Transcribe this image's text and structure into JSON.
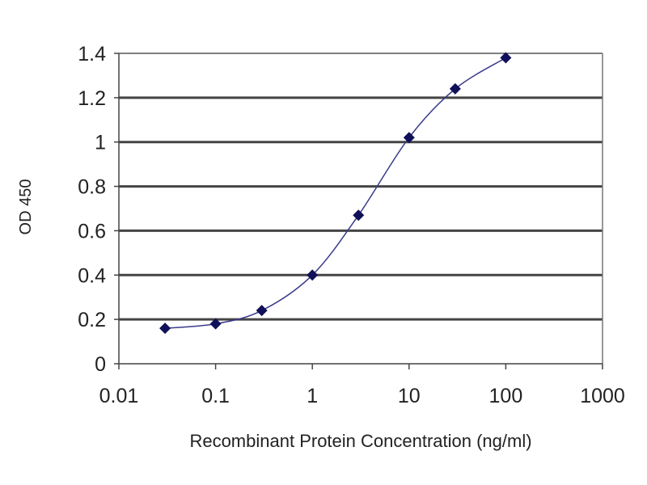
{
  "chart_data": {
    "type": "line",
    "title": "",
    "xlabel": "Recombinant Protein Concentration (ng/ml)",
    "ylabel": "OD 450",
    "x_scale": "log",
    "xlim": [
      0.01,
      1000
    ],
    "ylim": [
      0,
      1.4
    ],
    "x_ticks": [
      "0.01",
      "0.1",
      "1",
      "10",
      "100",
      "1000"
    ],
    "y_ticks": [
      "0",
      "0.2",
      "0.4",
      "0.6",
      "0.8",
      "1",
      "1.2",
      "1.4"
    ],
    "grid": "horizontal",
    "legend": "none",
    "line_color": "#3a3a8c",
    "marker_color": "#10105a",
    "marker": "diamond",
    "smooth": true,
    "x": [
      0.03,
      0.1,
      0.3,
      1,
      3,
      10,
      30,
      100
    ],
    "y": [
      0.16,
      0.18,
      0.24,
      0.4,
      0.67,
      1.02,
      1.24,
      1.38
    ]
  }
}
